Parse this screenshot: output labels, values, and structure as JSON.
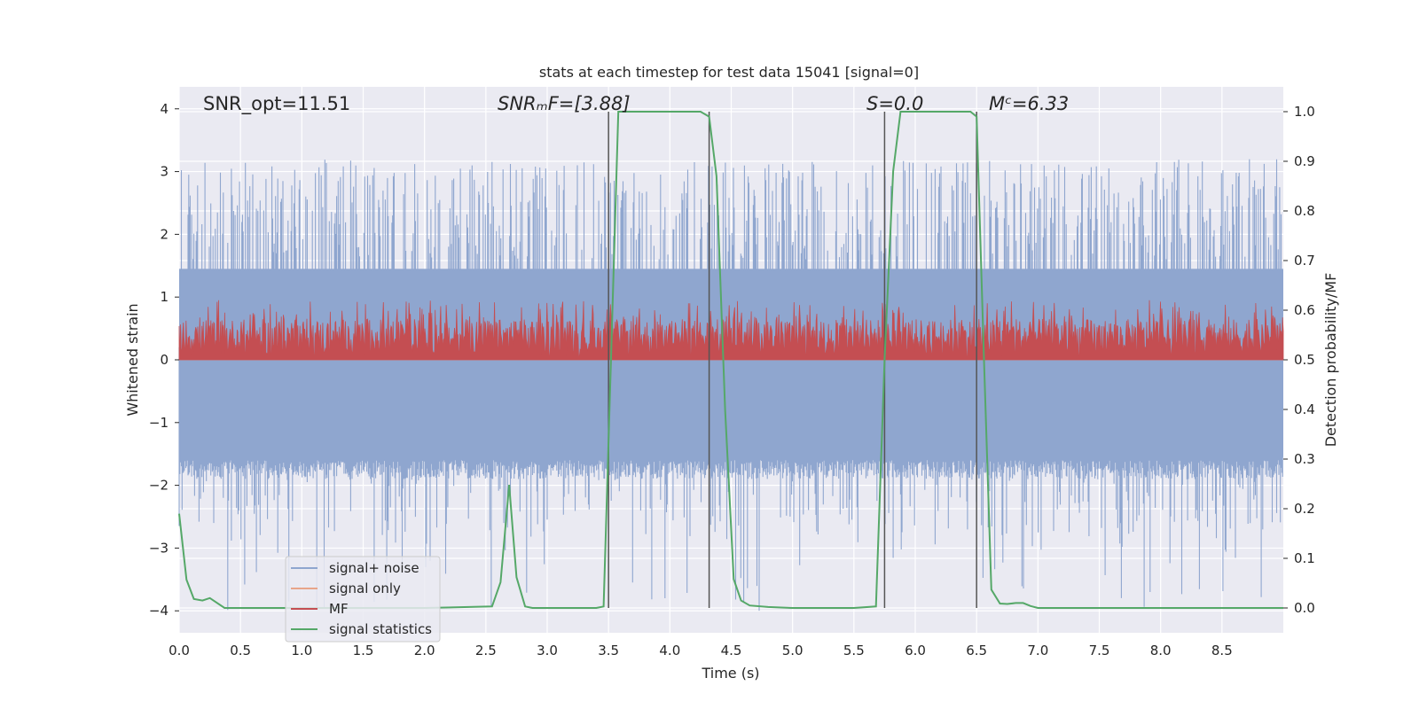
{
  "chart_data": {
    "type": "line",
    "title": "stats at each timestep for test data 15041 [signal=0]",
    "xlabel": "Time (s)",
    "ylabel_left": "Whitened strain",
    "ylabel_right": "Detection probability/MF",
    "xlim": [
      0.0,
      9.0
    ],
    "ylim_left": [
      -4.35,
      4.35
    ],
    "ylim_right": [
      -0.05,
      1.05
    ],
    "x_ticks": [
      0.0,
      0.5,
      1.0,
      1.5,
      2.0,
      2.5,
      3.0,
      3.5,
      4.0,
      4.5,
      5.0,
      5.5,
      6.0,
      6.5,
      7.0,
      7.5,
      8.0,
      8.5
    ],
    "x_tick_labels": [
      "0.0",
      "0.5",
      "1.0",
      "1.5",
      "2.0",
      "2.5",
      "3.0",
      "3.5",
      "4.0",
      "4.5",
      "5.0",
      "5.5",
      "6.0",
      "6.5",
      "7.0",
      "7.5",
      "8.0",
      "8.5"
    ],
    "y_left_ticks": [
      -4,
      -3,
      -2,
      -1,
      0,
      1,
      2,
      3,
      4
    ],
    "y_left_tick_labels": [
      "−4",
      "−3",
      "−2",
      "−1",
      "0",
      "1",
      "2",
      "3",
      "4"
    ],
    "y_right_ticks": [
      0.0,
      0.1,
      0.2,
      0.3,
      0.4,
      0.5,
      0.6,
      0.7,
      0.8,
      0.9,
      1.0
    ],
    "y_right_tick_labels": [
      "0.0",
      "0.1",
      "0.2",
      "0.3",
      "0.4",
      "0.5",
      "0.6",
      "0.7",
      "0.8",
      "0.9",
      "1.0"
    ],
    "grid": true,
    "legend_position": "lower-left",
    "annotations": [
      {
        "id": "snr-opt",
        "text": "SNR_opt=11.51",
        "x": 0.2,
        "y": 4.0
      },
      {
        "id": "snr-mf",
        "text": "SNRₘF=[3.88]",
        "x": 2.6,
        "y": 4.0
      },
      {
        "id": "s-value",
        "text": "S=0.0",
        "x": 5.6,
        "y": 4.0
      },
      {
        "id": "mc-value",
        "text": "Mᶜ=6.33",
        "x": 6.6,
        "y": 4.0
      }
    ],
    "vertical_lines": [
      3.5,
      4.32,
      5.75,
      6.5
    ],
    "series": [
      {
        "name": "signal+ noise",
        "axis": "left",
        "color": "#8fa6cf",
        "style": "noise",
        "amplitude_min": -4.0,
        "amplitude_max": 3.2,
        "typical_low": -1.6,
        "typical_high": 1.6
      },
      {
        "name": "signal only",
        "axis": "left",
        "color": "#e8a58a",
        "style": "line",
        "values_note": "zero"
      },
      {
        "name": "MF",
        "axis": "left",
        "color": "#c44e52",
        "style": "noise",
        "amplitude_min": 0.0,
        "amplitude_max": 0.95
      },
      {
        "name": "signal statistics",
        "axis": "right",
        "color": "#55a868",
        "style": "line",
        "x": [
          0.0,
          0.06,
          0.12,
          0.19,
          0.25,
          0.37,
          0.5,
          1.0,
          2.0,
          2.55,
          2.62,
          2.69,
          2.75,
          2.82,
          2.88,
          3.0,
          3.4,
          3.46,
          3.52,
          3.58,
          3.65,
          4.0,
          4.25,
          4.32,
          4.38,
          4.45,
          4.52,
          4.58,
          4.65,
          4.8,
          5.0,
          5.5,
          5.68,
          5.75,
          5.82,
          5.88,
          6.0,
          6.45,
          6.5,
          6.56,
          6.62,
          6.69,
          6.75,
          6.82,
          6.88,
          6.94,
          7.0,
          8.0,
          9.0
        ],
        "y": [
          0.19,
          0.057,
          0.018,
          0.015,
          0.02,
          0.0,
          0.0,
          0.0,
          0.0,
          0.003,
          0.052,
          0.248,
          0.062,
          0.003,
          0.0,
          0.0,
          0.0,
          0.003,
          0.5,
          1.0,
          1.0,
          1.0,
          1.0,
          0.99,
          0.87,
          0.4,
          0.058,
          0.015,
          0.005,
          0.002,
          0.0,
          0.0,
          0.003,
          0.5,
          0.88,
          1.0,
          1.0,
          1.0,
          0.99,
          0.5,
          0.037,
          0.009,
          0.008,
          0.01,
          0.01,
          0.004,
          0.0,
          0.0,
          0.0
        ]
      }
    ]
  }
}
